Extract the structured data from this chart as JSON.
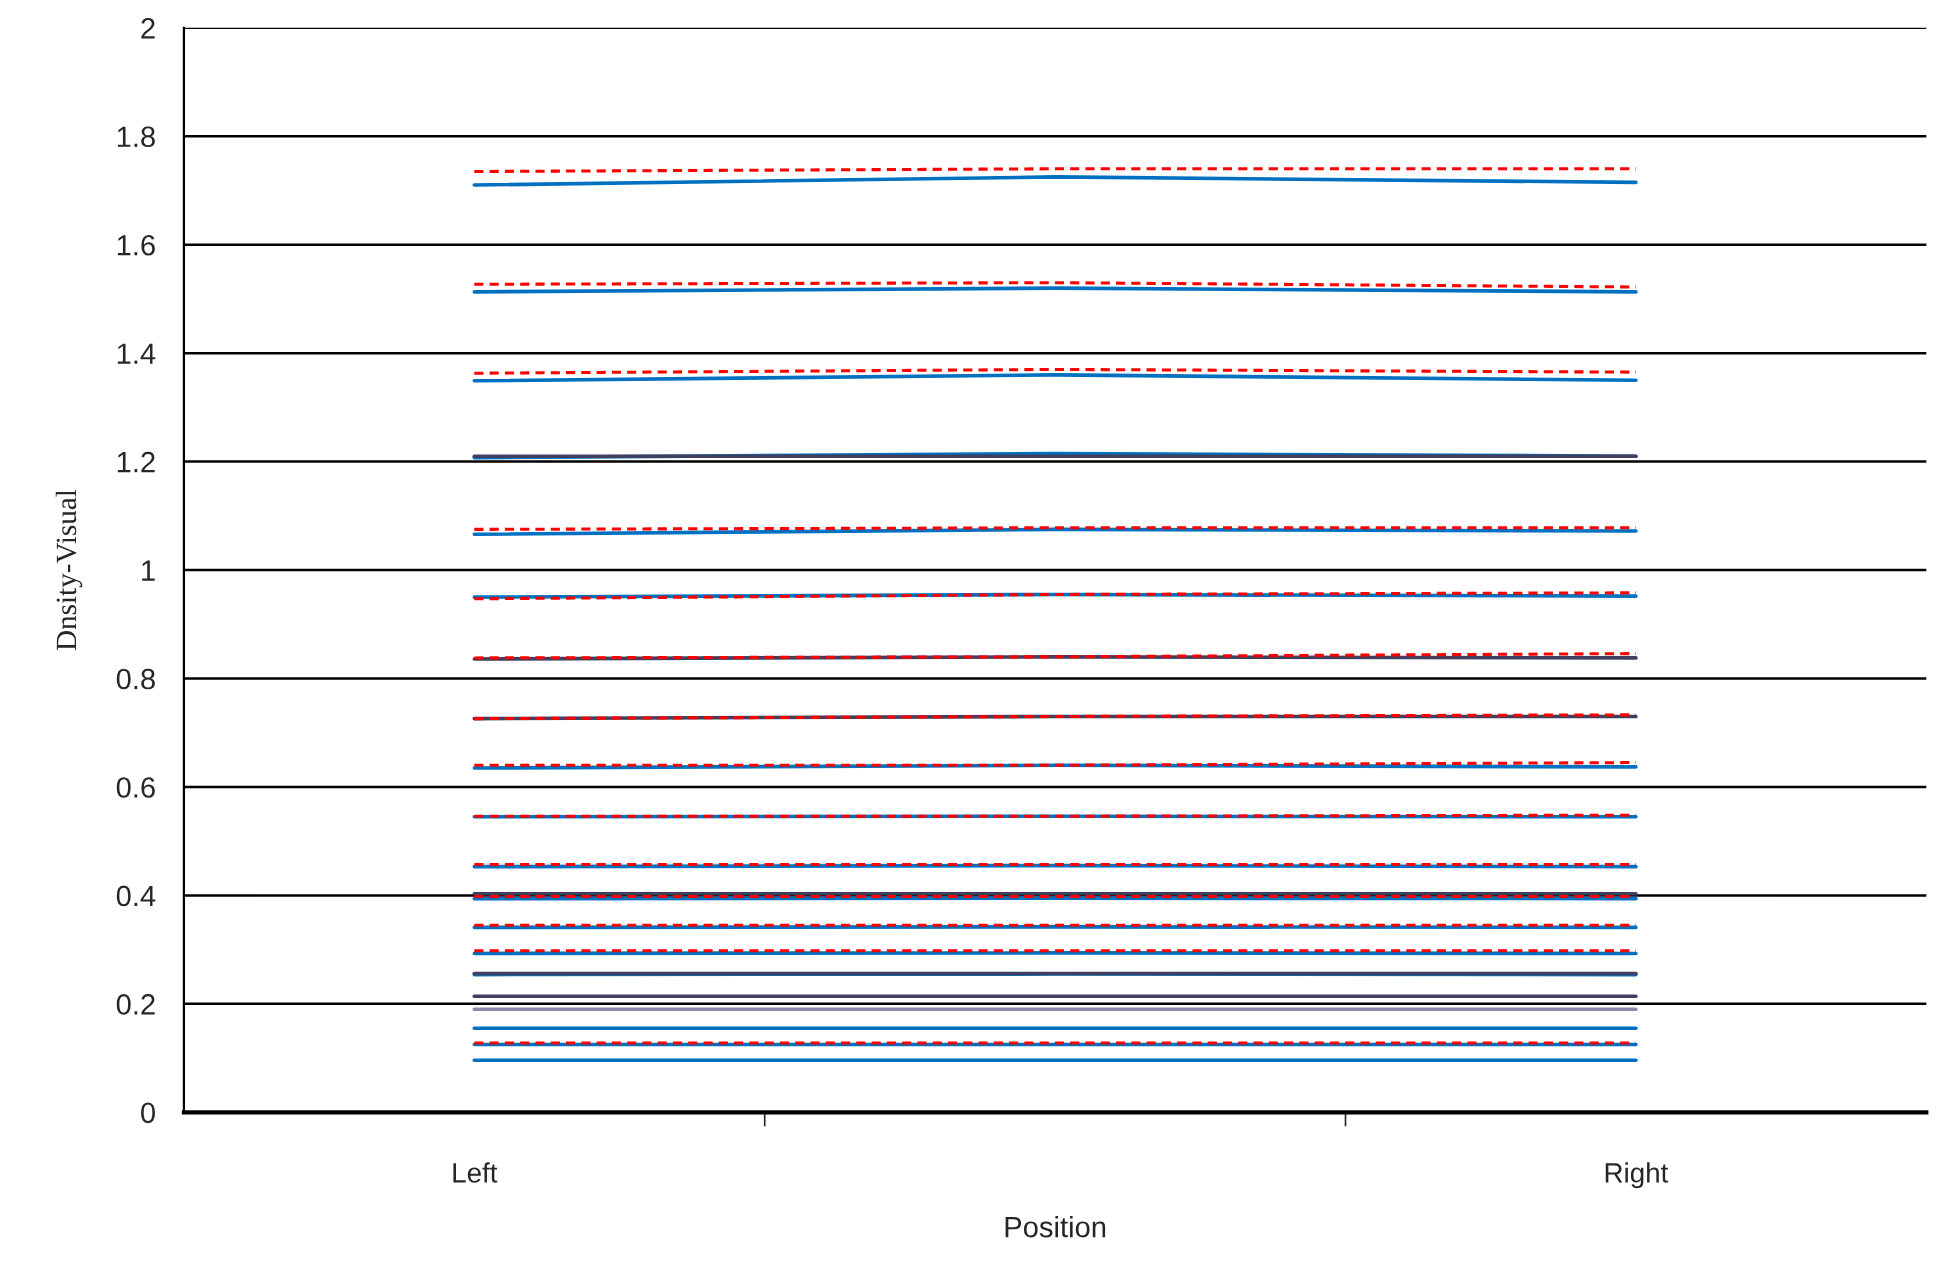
{
  "chart_data": {
    "type": "line",
    "xlabel": "Position",
    "ylabel": "Dnsity-Visual",
    "categories": [
      "Left",
      null,
      "Right"
    ],
    "ylim": [
      0,
      2
    ],
    "yticks": [
      0,
      0.2,
      0.4,
      0.6,
      0.8,
      1,
      1.2,
      1.4,
      1.6,
      1.8,
      2
    ],
    "grid": "y",
    "legend": false,
    "marker": "none",
    "series": [
      {
        "color": "#0070c0",
        "line_style": "solid",
        "values": [
          1.71,
          1.725,
          1.715
        ]
      },
      {
        "color": "#ff0000",
        "line_style": "dashed",
        "values": [
          1.735,
          1.74,
          1.74
        ]
      },
      {
        "color": "#0070c0",
        "line_style": "solid",
        "values": [
          1.513,
          1.52,
          1.513
        ]
      },
      {
        "color": "#ff0000",
        "line_style": "dashed",
        "values": [
          1.527,
          1.53,
          1.522
        ]
      },
      {
        "color": "#0070c0",
        "line_style": "solid",
        "values": [
          1.349,
          1.36,
          1.35
        ]
      },
      {
        "color": "#ff0000",
        "line_style": "dashed",
        "values": [
          1.363,
          1.37,
          1.365
        ]
      },
      {
        "color": "#0070c0",
        "line_style": "solid",
        "values": [
          1.207,
          1.215,
          1.21
        ]
      },
      {
        "color": "#3f3f5f",
        "line_style": "solid",
        "values": [
          1.21,
          1.21,
          1.21
        ]
      },
      {
        "color": "#0070c0",
        "line_style": "solid",
        "values": [
          1.066,
          1.075,
          1.072
        ]
      },
      {
        "color": "#ff0000",
        "line_style": "dashed",
        "values": [
          1.075,
          1.078,
          1.078
        ]
      },
      {
        "color": "#0070c0",
        "line_style": "solid",
        "values": [
          0.95,
          0.955,
          0.952
        ]
      },
      {
        "color": "#ff0000",
        "line_style": "dashed",
        "values": [
          0.947,
          0.955,
          0.958
        ]
      },
      {
        "color": "#3f3f5f",
        "line_style": "solid",
        "values": [
          0.836,
          0.84,
          0.838
        ]
      },
      {
        "color": "#ff0000",
        "line_style": "dashed",
        "values": [
          0.838,
          0.84,
          0.846
        ]
      },
      {
        "color": "#3f3f5f",
        "line_style": "solid",
        "values": [
          0.726,
          0.73,
          0.73
        ]
      },
      {
        "color": "#ff0000",
        "line_style": "dashed",
        "values": [
          0.726,
          0.73,
          0.733
        ]
      },
      {
        "color": "#0070c0",
        "line_style": "solid",
        "values": [
          0.635,
          0.64,
          0.637
        ]
      },
      {
        "color": "#ff0000",
        "line_style": "dashed",
        "values": [
          0.64,
          0.64,
          0.645
        ]
      },
      {
        "color": "#0070c0",
        "line_style": "solid",
        "values": [
          0.545,
          0.546,
          0.545
        ]
      },
      {
        "color": "#ff0000",
        "line_style": "dashed",
        "values": [
          0.546,
          0.546,
          0.548
        ]
      },
      {
        "color": "#0070c0",
        "line_style": "solid",
        "values": [
          0.453,
          0.455,
          0.453
        ]
      },
      {
        "color": "#ff0000",
        "line_style": "dashed",
        "values": [
          0.457,
          0.457,
          0.457
        ]
      },
      {
        "color": "#0070c0",
        "line_style": "solid",
        "values": [
          0.394,
          0.395,
          0.394
        ]
      },
      {
        "color": "#3f3f5f",
        "line_style": "solid",
        "values": [
          0.403,
          0.403,
          0.403
        ]
      },
      {
        "color": "#ff0000",
        "line_style": "dashed",
        "values": [
          0.398,
          0.398,
          0.398
        ]
      },
      {
        "color": "#0070c0",
        "line_style": "solid",
        "values": [
          0.341,
          0.342,
          0.341
        ]
      },
      {
        "color": "#ff0000",
        "line_style": "dashed",
        "values": [
          0.345,
          0.345,
          0.345
        ]
      },
      {
        "color": "#0070c0",
        "line_style": "solid",
        "values": [
          0.293,
          0.294,
          0.293
        ]
      },
      {
        "color": "#ff0000",
        "line_style": "dashed",
        "values": [
          0.298,
          0.298,
          0.298
        ]
      },
      {
        "color": "#0070c0",
        "line_style": "solid",
        "values": [
          0.254,
          0.255,
          0.254
        ]
      },
      {
        "color": "#3f3f5f",
        "line_style": "solid",
        "values": [
          0.256,
          0.256,
          0.256
        ]
      },
      {
        "color": "#3f3f5f",
        "line_style": "solid",
        "values": [
          0.214,
          0.214,
          0.214
        ]
      },
      {
        "color": "#8a8aa8",
        "line_style": "solid",
        "values": [
          0.19,
          0.19,
          0.19
        ]
      },
      {
        "color": "#0070c0",
        "line_style": "solid",
        "values": [
          0.155,
          0.155,
          0.155
        ]
      },
      {
        "color": "#0070c0",
        "line_style": "solid",
        "values": [
          0.125,
          0.125,
          0.125
        ]
      },
      {
        "color": "#ff0000",
        "line_style": "dashed",
        "values": [
          0.128,
          0.128,
          0.128
        ]
      },
      {
        "color": "#0070c0",
        "line_style": "solid",
        "values": [
          0.096,
          0.096,
          0.096
        ]
      }
    ]
  }
}
